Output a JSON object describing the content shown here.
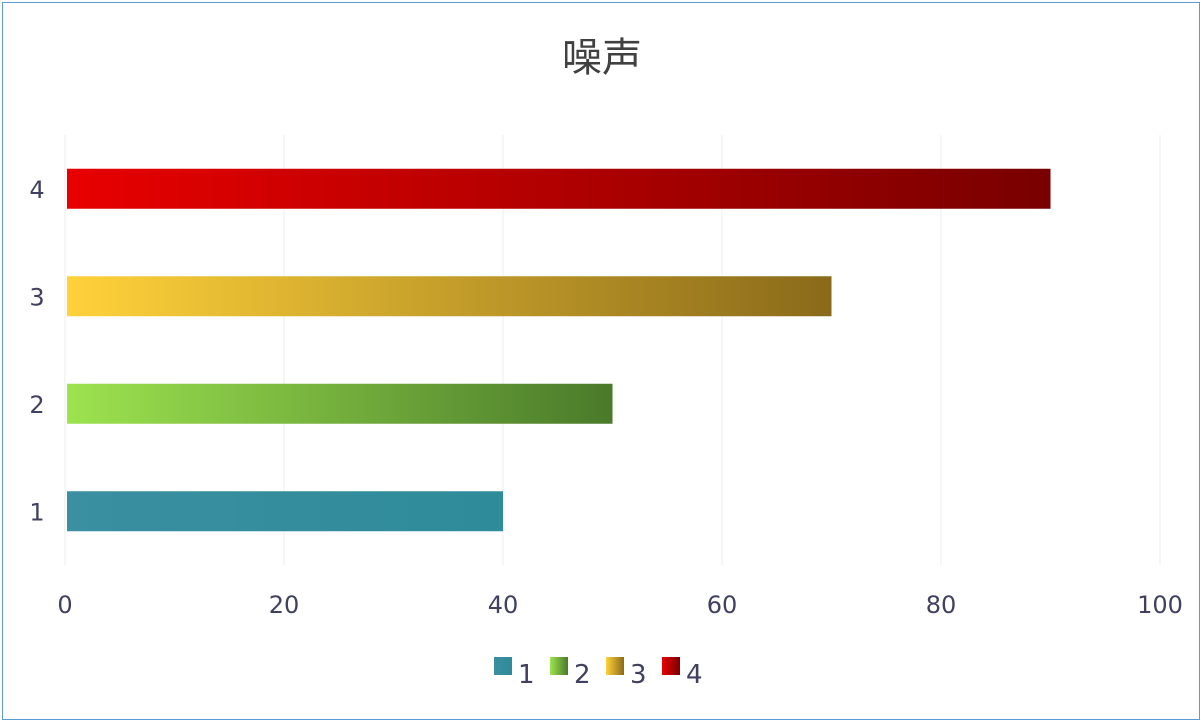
{
  "chart_data": {
    "type": "bar",
    "orientation": "horizontal",
    "title": "噪声",
    "categories": [
      "1",
      "2",
      "3",
      "4"
    ],
    "values": [
      40,
      50,
      70,
      90
    ],
    "xlim": [
      0,
      100
    ],
    "xticks": [
      "0",
      "20",
      "40",
      "60",
      "80",
      "100"
    ],
    "grid": "vertical",
    "legend": {
      "placement": "bottom",
      "entries": [
        "1",
        "2",
        "3",
        "4"
      ]
    },
    "colors": [
      {
        "start": "#3a8fa0",
        "end": "#2e8b9a"
      },
      {
        "start": "#9de34f",
        "end": "#4a7a2a"
      },
      {
        "start": "#ffd23a",
        "end": "#8a6a1a"
      },
      {
        "start": "#e80000",
        "end": "#780000"
      }
    ]
  }
}
